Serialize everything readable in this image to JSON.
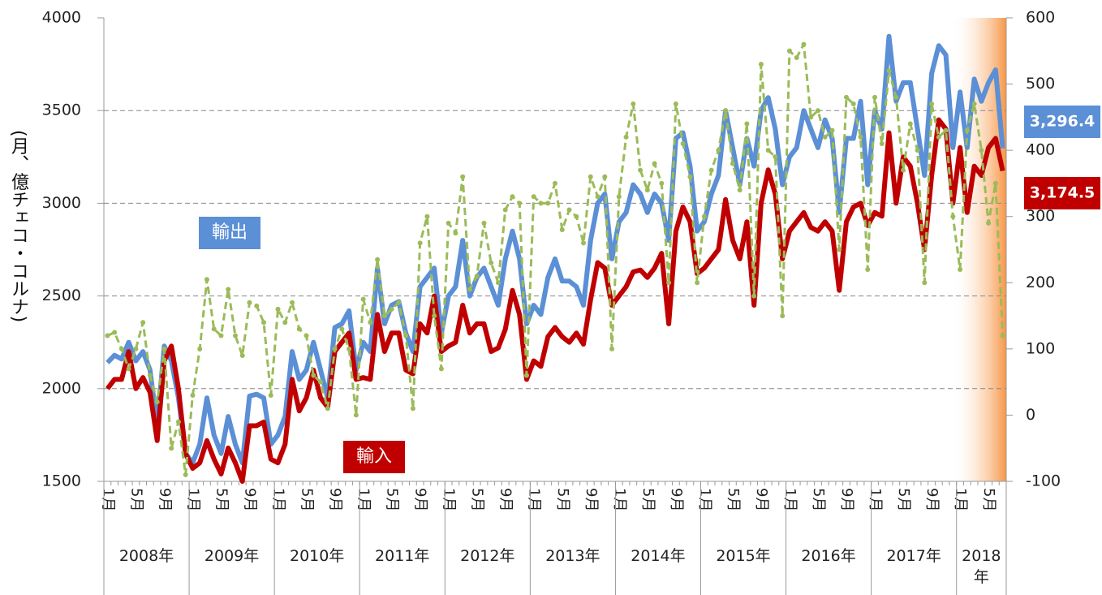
{
  "chart_data": {
    "type": "line",
    "y_label": "(月、億チェコ・コルナ)",
    "categories": [
      "1月",
      null,
      null,
      null,
      "5月",
      null,
      null,
      null,
      "9月",
      null,
      null,
      null,
      "1月",
      null,
      null,
      null,
      "5月",
      null,
      null,
      null,
      "9月",
      null,
      null,
      null,
      "1月",
      null,
      null,
      null,
      "5月",
      null,
      null,
      null,
      "9月",
      null,
      null,
      null,
      "1月",
      null,
      null,
      null,
      "5月",
      null,
      null,
      null,
      "9月",
      null,
      null,
      null,
      "1月",
      null,
      null,
      null,
      "5月",
      null,
      null,
      null,
      "9月",
      null,
      null,
      null,
      "1月",
      null,
      null,
      null,
      "5月",
      null,
      null,
      null,
      "9月",
      null,
      null,
      null,
      "1月",
      null,
      null,
      null,
      "5月",
      null,
      null,
      null,
      "9月",
      null,
      null,
      null,
      "1月",
      null,
      null,
      null,
      "5月",
      null,
      null,
      null,
      "9月",
      null,
      null,
      null,
      "1月",
      null,
      null,
      null,
      "5月",
      null,
      null,
      null,
      "9月",
      null,
      null,
      null,
      "1月",
      null,
      null,
      null,
      "5月",
      null,
      null,
      null,
      "9月",
      null,
      null,
      null,
      "1月",
      null,
      null,
      null,
      "5月",
      null,
      null
    ],
    "years": [
      "2008年",
      "2009年",
      "2010年",
      "2011年",
      "2012年",
      "2013年",
      "2014年",
      "2015年",
      "2016年",
      "2017年",
      "2018年"
    ],
    "series": [
      {
        "name": "輸出",
        "color": "#5b8fd6",
        "values": [
          2140,
          2180,
          2160,
          2250,
          2150,
          2200,
          2100,
          1800,
          2230,
          2150,
          1950,
          1650,
          1600,
          1700,
          1950,
          1750,
          1650,
          1850,
          1700,
          1600,
          1960,
          1970,
          1950,
          1700,
          1750,
          1850,
          2200,
          2050,
          2100,
          2250,
          2100,
          1950,
          2330,
          2350,
          2420,
          2100,
          2250,
          2200,
          2650,
          2350,
          2450,
          2470,
          2300,
          2200,
          2550,
          2600,
          2650,
          2300,
          2500,
          2550,
          2800,
          2500,
          2600,
          2650,
          2550,
          2450,
          2700,
          2850,
          2700,
          2350,
          2450,
          2400,
          2600,
          2700,
          2580,
          2580,
          2550,
          2450,
          2800,
          3000,
          3050,
          2700,
          2900,
          2950,
          3100,
          3050,
          2950,
          3050,
          3000,
          2800,
          3350,
          3380,
          3200,
          2850,
          2900,
          3050,
          3150,
          3500,
          3300,
          3100,
          3350,
          3200,
          3500,
          3570,
          3400,
          3100,
          3250,
          3300,
          3500,
          3400,
          3300,
          3450,
          3350,
          2950,
          3350,
          3350,
          3550,
          3100,
          3500,
          3400,
          3900,
          3550,
          3650,
          3650,
          3400,
          3150,
          3700,
          3850,
          3800,
          3300,
          3600,
          3300,
          3670,
          3550,
          3650,
          3720,
          3296.4
        ],
        "value_labels": [
          null,
          null,
          null,
          null,
          null,
          null,
          null,
          null,
          null,
          null,
          null,
          null,
          null,
          null,
          null,
          null,
          null,
          null,
          null,
          null,
          null,
          null,
          null,
          null,
          null,
          null,
          null,
          null,
          null,
          null,
          null,
          null,
          null,
          null,
          null,
          null,
          null,
          null,
          null,
          null,
          null,
          null,
          null,
          null,
          null,
          null,
          null,
          null,
          null,
          null,
          null,
          null,
          null,
          null,
          null,
          null,
          null,
          null,
          null,
          null,
          null,
          null,
          null,
          null,
          null,
          null,
          null,
          null,
          null,
          null,
          null,
          null,
          null,
          null,
          null,
          null,
          null,
          null,
          null,
          null,
          null,
          null,
          null,
          null,
          null,
          null,
          null,
          null,
          null,
          null,
          null,
          null,
          null,
          null,
          null,
          null,
          null,
          null,
          null,
          null,
          null,
          null,
          null,
          null,
          null,
          null,
          null,
          null,
          null,
          null,
          null,
          null,
          null,
          null,
          null,
          null,
          null,
          null,
          null,
          null,
          null,
          null,
          null,
          null,
          null,
          null,
          "3,296.4"
        ]
      },
      {
        "name": "輸入",
        "color": "#c00000",
        "values": [
          2000,
          2050,
          2050,
          2200,
          2000,
          2060,
          1980,
          1720,
          2150,
          2230,
          2000,
          1650,
          1570,
          1600,
          1720,
          1620,
          1540,
          1680,
          1600,
          1500,
          1800,
          1800,
          1820,
          1620,
          1600,
          1700,
          2050,
          1880,
          1950,
          2100,
          1950,
          1900,
          2200,
          2250,
          2300,
          2050,
          2060,
          2050,
          2400,
          2200,
          2300,
          2300,
          2100,
          2080,
          2350,
          2300,
          2500,
          2200,
          2230,
          2250,
          2450,
          2300,
          2350,
          2350,
          2200,
          2220,
          2320,
          2530,
          2400,
          2050,
          2150,
          2120,
          2280,
          2330,
          2280,
          2250,
          2300,
          2240,
          2480,
          2680,
          2650,
          2450,
          2500,
          2550,
          2630,
          2640,
          2600,
          2650,
          2730,
          2350,
          2850,
          2980,
          2900,
          2620,
          2650,
          2700,
          2750,
          3020,
          2800,
          2700,
          2900,
          2450,
          3000,
          3180,
          3050,
          2700,
          2850,
          2900,
          2950,
          2870,
          2850,
          2900,
          2850,
          2530,
          2900,
          2980,
          3000,
          2880,
          2950,
          2930,
          3380,
          3000,
          3250,
          3200,
          3000,
          2750,
          3150,
          3450,
          3400,
          3000,
          3300,
          2950,
          3200,
          3150,
          3300,
          3350,
          3174.5
        ],
        "value_labels": [
          null,
          null,
          null,
          null,
          null,
          null,
          null,
          null,
          null,
          null,
          null,
          null,
          null,
          null,
          null,
          null,
          null,
          null,
          null,
          null,
          null,
          null,
          null,
          null,
          null,
          null,
          null,
          null,
          null,
          null,
          null,
          null,
          null,
          null,
          null,
          null,
          null,
          null,
          null,
          null,
          null,
          null,
          null,
          null,
          null,
          null,
          null,
          null,
          null,
          null,
          null,
          null,
          null,
          null,
          null,
          null,
          null,
          null,
          null,
          null,
          null,
          null,
          null,
          null,
          null,
          null,
          null,
          null,
          null,
          null,
          null,
          null,
          null,
          null,
          null,
          null,
          null,
          null,
          null,
          null,
          null,
          null,
          null,
          null,
          null,
          null,
          null,
          null,
          null,
          null,
          null,
          null,
          null,
          null,
          null,
          null,
          null,
          null,
          null,
          null,
          null,
          null,
          null,
          null,
          null,
          null,
          null,
          null,
          null,
          null,
          null,
          null,
          null,
          null,
          null,
          null,
          null,
          null,
          null,
          null,
          null,
          null,
          null,
          null,
          null,
          null,
          "3,174.5"
        ]
      },
      {
        "color": "#9bbb59",
        "axis": "y2",
        "line_style": "dashed",
        "markers": true,
        "values": [
          120,
          125,
          100,
          70,
          100,
          140,
          60,
          20,
          100,
          -50,
          -10,
          -90,
          30,
          100,
          205,
          130,
          120,
          190,
          120,
          90,
          170,
          165,
          140,
          30,
          160,
          140,
          170,
          130,
          120,
          60,
          50,
          10,
          100,
          130,
          100,
          0,
          175,
          140,
          235,
          150,
          160,
          170,
          120,
          10,
          260,
          300,
          150,
          70,
          290,
          275,
          360,
          190,
          210,
          290,
          230,
          200,
          310,
          330,
          320,
          60,
          330,
          320,
          320,
          350,
          280,
          310,
          300,
          260,
          360,
          330,
          360,
          100,
          330,
          420,
          470,
          370,
          340,
          380,
          350,
          200,
          470,
          410,
          360,
          200,
          300,
          370,
          400,
          460,
          380,
          340,
          440,
          180,
          530,
          400,
          390,
          150,
          550,
          540,
          560,
          450,
          460,
          420,
          430,
          250,
          480,
          470,
          420,
          220,
          480,
          410,
          520,
          480,
          370,
          440,
          400,
          200,
          470,
          420,
          430,
          300,
          220,
          430,
          470,
          400,
          290,
          350,
          120
        ]
      }
    ],
    "ylim": [
      1500,
      4000
    ],
    "yticks": [
      1500,
      2000,
      2500,
      3000,
      3500,
      4000
    ],
    "y2lim": [
      -100,
      600
    ],
    "y2ticks": [
      -100,
      0,
      100,
      200,
      300,
      400,
      500,
      600
    ],
    "grid": true
  }
}
